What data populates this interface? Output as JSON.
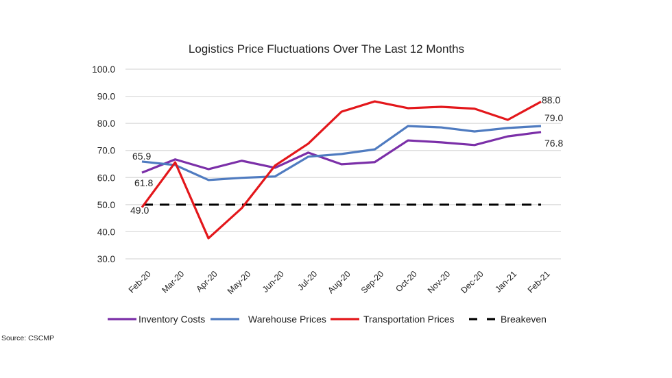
{
  "chart_data": {
    "type": "line",
    "title": "Logistics Price Fluctuations Over The Last 12 Months",
    "xlabel": "",
    "ylabel": "",
    "ylim": [
      30,
      100
    ],
    "yticks": [
      "100.0",
      "90.0",
      "80.0",
      "70.0",
      "60.0",
      "50.0",
      "40.0",
      "30.0"
    ],
    "ytick_values": [
      100,
      90,
      80,
      70,
      60,
      50,
      40,
      30
    ],
    "grid": true,
    "legend_position": "bottom",
    "categories": [
      "Feb-20",
      "Mar-20",
      "Apr-20",
      "May-20",
      "Jun-20",
      "Jul-20",
      "Aug-20",
      "Sep-20",
      "Oct-20",
      "Nov-20",
      "Dec-20",
      "Jan-21",
      "Feb-21"
    ],
    "series": [
      {
        "name": "Inventory Costs",
        "color": "#7b2fa8",
        "style": "solid",
        "values": [
          61.8,
          66.7,
          63.1,
          66.2,
          63.6,
          69.2,
          64.9,
          65.7,
          73.7,
          73.0,
          72.0,
          75.2,
          76.8
        ]
      },
      {
        "name": "Warehouse Prices",
        "color": "#4f7bc0",
        "style": "solid",
        "values": [
          65.9,
          64.6,
          59.1,
          59.9,
          60.4,
          67.7,
          68.7,
          70.4,
          79.0,
          78.5,
          77.0,
          78.3,
          79.0
        ]
      },
      {
        "name": "Transportation Prices",
        "color": "#e3171b",
        "style": "solid",
        "values": [
          49.0,
          65.6,
          37.6,
          48.7,
          64.4,
          72.5,
          84.3,
          88.1,
          85.6,
          86.1,
          85.4,
          81.3,
          88.0
        ]
      },
      {
        "name": "Breakeven",
        "color": "#000000",
        "style": "dashed",
        "values": [
          50,
          50,
          50,
          50,
          50,
          50,
          50,
          50,
          50,
          50,
          50,
          50,
          50
        ]
      }
    ],
    "annotations": [
      {
        "text": "65.9",
        "series": "Warehouse Prices",
        "category": "Feb-20"
      },
      {
        "text": "61.8",
        "series": "Inventory Costs",
        "category": "Feb-20"
      },
      {
        "text": "49.0",
        "series": "Transportation Prices",
        "category": "Feb-20"
      },
      {
        "text": "88.0",
        "series": "Transportation Prices",
        "category": "Feb-21"
      },
      {
        "text": "79.0",
        "series": "Warehouse Prices",
        "category": "Feb-21"
      },
      {
        "text": "76.8",
        "series": "Inventory Costs",
        "category": "Feb-21"
      }
    ],
    "source": "Source:  CSCMP"
  }
}
